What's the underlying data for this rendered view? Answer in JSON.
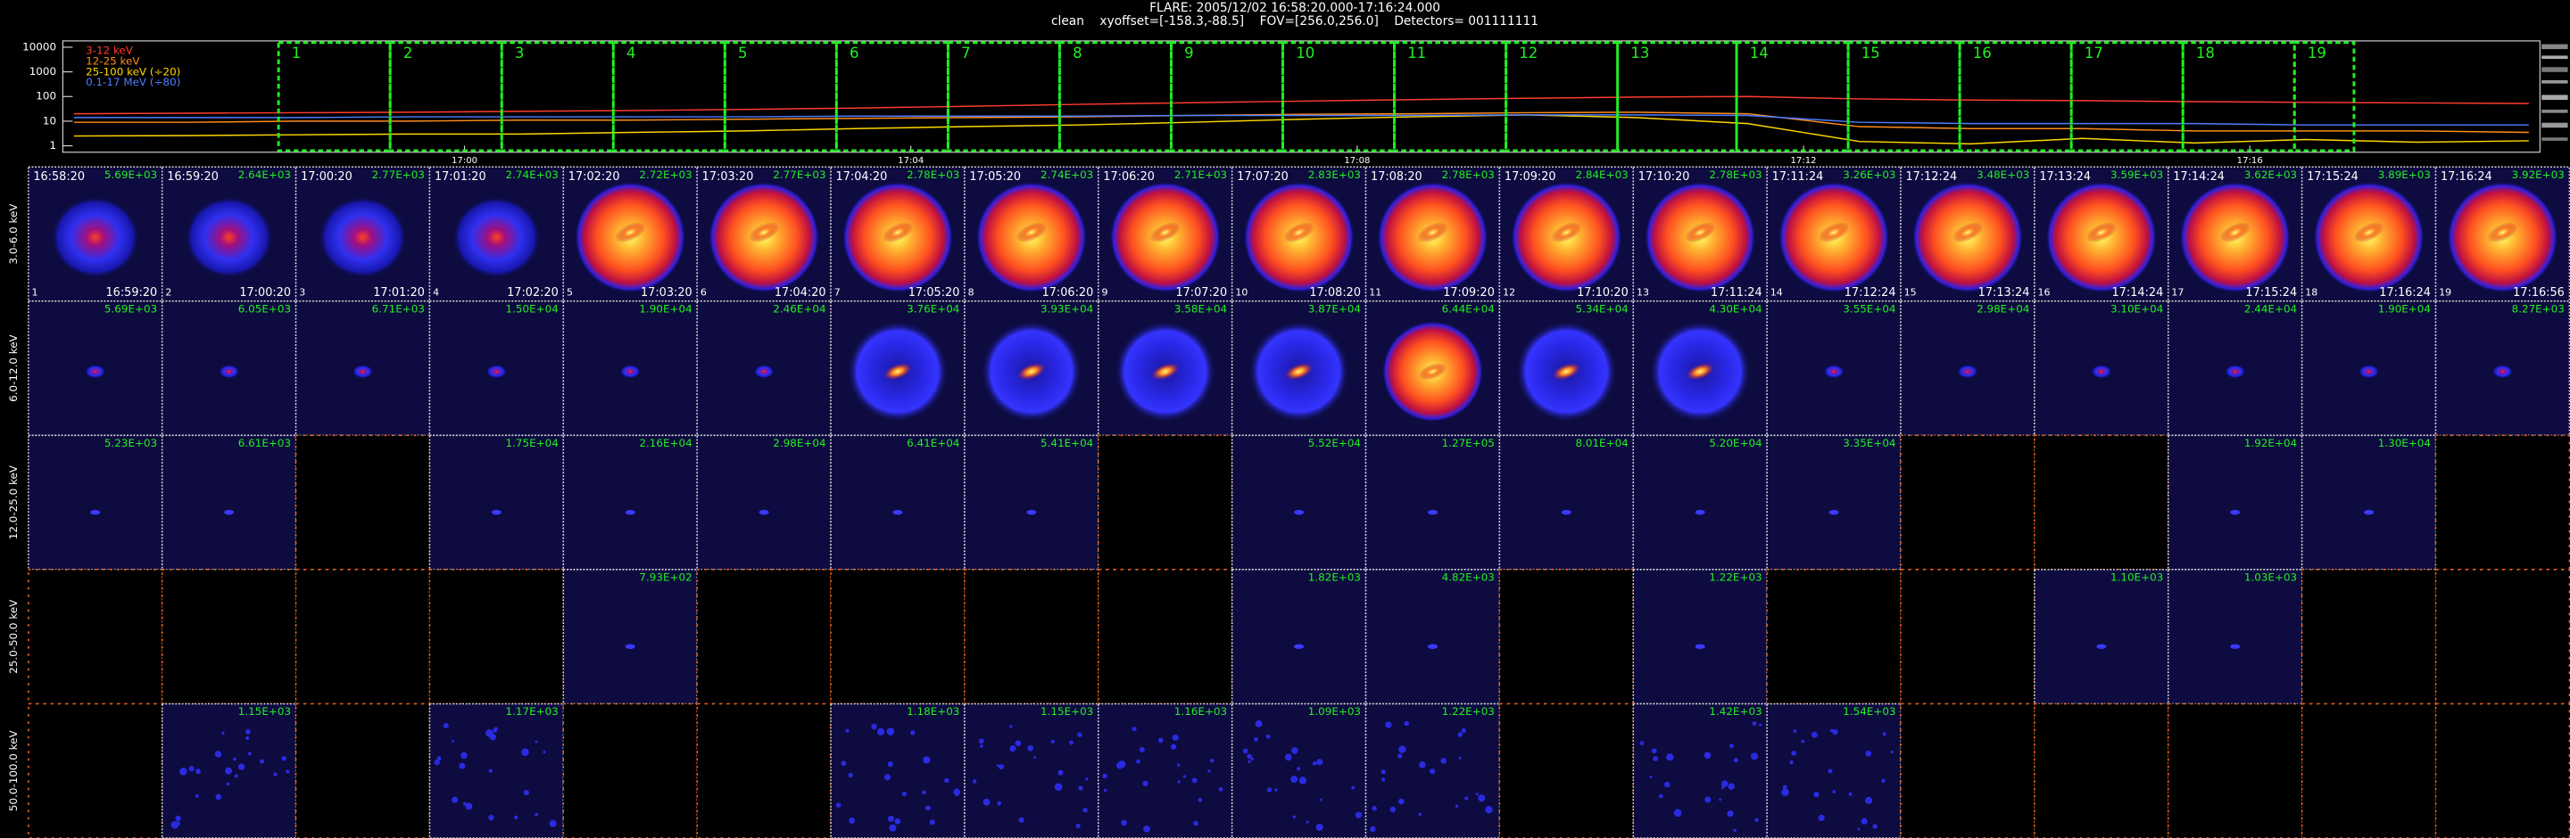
{
  "header": {
    "title": "FLARE: 2005/12/02 16:58:20.000-17:16:24.000",
    "subtitle": "clean    xyoffset=[-158.3,-88.5]    FOV=[256.0,256.0]    Detectors= 001111111"
  },
  "chart_data": {
    "type": "line",
    "log_y": true,
    "legend": "top-left",
    "x": [
      1016.5,
      1017.5,
      1018.5,
      1019.5,
      1020.5,
      1021.5,
      1022.5,
      1023.5,
      1024.5,
      1025.5,
      1026.5,
      1027.5,
      1028.5,
      1029.5,
      1030.5,
      1031.5,
      1032.5,
      1033.5,
      1034.5,
      1035.5,
      1036.5,
      1037.5,
      1038.5
    ],
    "xlim": [
      1016.4,
      1038.6
    ],
    "xticks": [
      {
        "value": 1020,
        "label": "17:00"
      },
      {
        "value": 1024,
        "label": "17:04"
      },
      {
        "value": 1028,
        "label": "17:08"
      },
      {
        "value": 1032,
        "label": "17:12"
      },
      {
        "value": 1036,
        "label": "17:16"
      }
    ],
    "ylim": [
      0.55,
      18000
    ],
    "yticks": [
      1,
      10,
      100,
      1000,
      10000
    ],
    "series": [
      {
        "name": "3-12 keV",
        "color": "#ff3b2f",
        "values": [
          20,
          21,
          22,
          23,
          25,
          27,
          30,
          34,
          40,
          48,
          56,
          65,
          75,
          85,
          95,
          100,
          80,
          72,
          68,
          62,
          58,
          55,
          52
        ]
      },
      {
        "name": "12-25 keV",
        "color": "#ff8c1a",
        "values": [
          9,
          9,
          10,
          10,
          11,
          11,
          12,
          13,
          14,
          15,
          17,
          19,
          20,
          22,
          23,
          20,
          6,
          5,
          5,
          4,
          4,
          4,
          3.5
        ]
      },
      {
        "name": "25-100 keV (÷20)",
        "color": "#ffd700",
        "values": [
          2.5,
          2.6,
          2.8,
          3,
          3,
          3.5,
          4,
          5,
          6,
          7,
          9,
          12,
          15,
          18,
          14,
          8,
          1.5,
          1.2,
          2,
          1.3,
          1.8,
          1.4,
          1.6
        ]
      },
      {
        "name": "0.1-17 MeV (÷80)",
        "color": "#4f7dff",
        "values": [
          14,
          14,
          14,
          15,
          15,
          15,
          15,
          16,
          16,
          16,
          17,
          17,
          17,
          18,
          18,
          17,
          9,
          8,
          8,
          8,
          7,
          7,
          7
        ]
      }
    ]
  },
  "intervals": [
    "1",
    "2",
    "3",
    "4",
    "5",
    "6",
    "7",
    "8",
    "9",
    "10",
    "11",
    "12",
    "13",
    "14",
    "15",
    "16",
    "17",
    "18",
    "19"
  ],
  "image_grid": {
    "rows": [
      "3.0-6.0 keV",
      "6.0-12.0 keV",
      "12.0-25.0 keV",
      "25.0-50.0 keV",
      "50.0-100.0 keV"
    ],
    "columns": [
      {
        "index": "1",
        "start": "16:58:20",
        "end": "16:59:20"
      },
      {
        "index": "2",
        "start": "16:59:20",
        "end": "17:00:20"
      },
      {
        "index": "3",
        "start": "17:00:20",
        "end": "17:01:20"
      },
      {
        "index": "4",
        "start": "17:01:20",
        "end": "17:02:20"
      },
      {
        "index": "5",
        "start": "17:02:20",
        "end": "17:03:20"
      },
      {
        "index": "6",
        "start": "17:03:20",
        "end": "17:04:20"
      },
      {
        "index": "7",
        "start": "17:04:20",
        "end": "17:05:20"
      },
      {
        "index": "8",
        "start": "17:05:20",
        "end": "17:06:20"
      },
      {
        "index": "9",
        "start": "17:06:20",
        "end": "17:07:20"
      },
      {
        "index": "10",
        "start": "17:07:20",
        "end": "17:08:20"
      },
      {
        "index": "11",
        "start": "17:08:20",
        "end": "17:09:20"
      },
      {
        "index": "12",
        "start": "17:09:20",
        "end": "17:10:20"
      },
      {
        "index": "13",
        "start": "17:10:20",
        "end": "17:11:24"
      },
      {
        "index": "14",
        "start": "17:11:24",
        "end": "17:12:24"
      },
      {
        "index": "15",
        "start": "17:12:24",
        "end": "17:13:24"
      },
      {
        "index": "16",
        "start": "17:13:24",
        "end": "17:14:24"
      },
      {
        "index": "17",
        "start": "17:14:24",
        "end": "17:15:24"
      },
      {
        "index": "18",
        "start": "17:15:24",
        "end": "17:16:24"
      },
      {
        "index": "19",
        "start": "17:16:24",
        "end": "17:16:56"
      }
    ],
    "max_values": [
      [
        "5.69E+03",
        "2.64E+03",
        "2.77E+03",
        "2.74E+03",
        "2.72E+03",
        "2.77E+03",
        "2.78E+03",
        "2.74E+03",
        "2.71E+03",
        "2.83E+03",
        "2.78E+03",
        "2.84E+03",
        "2.78E+03",
        "3.26E+03",
        "3.48E+03",
        "3.59E+03",
        "3.62E+03",
        "3.89E+03",
        "3.92E+03"
      ],
      [
        "5.69E+03",
        "6.05E+03",
        "6.71E+03",
        "1.50E+04",
        "1.90E+04",
        "2.46E+04",
        "3.76E+04",
        "3.93E+04",
        "3.58E+04",
        "3.87E+04",
        "6.44E+04",
        "5.34E+04",
        "4.30E+04",
        "3.55E+04",
        "2.98E+04",
        "3.10E+04",
        "2.44E+04",
        "1.90E+04",
        "8.27E+03"
      ],
      [
        "5.23E+03",
        "6.61E+03",
        null,
        "1.75E+04",
        "2.16E+04",
        "2.98E+04",
        "6.41E+04",
        "5.41E+04",
        null,
        "5.52E+04",
        "1.27E+05",
        "8.01E+04",
        "5.20E+04",
        "3.35E+04",
        null,
        null,
        "1.92E+04",
        "1.30E+04",
        null
      ],
      [
        null,
        null,
        null,
        null,
        "7.93E+02",
        null,
        null,
        null,
        null,
        "1.82E+03",
        "4.82E+03",
        null,
        "1.22E+03",
        null,
        null,
        "1.10E+03",
        "1.03E+03",
        null,
        null
      ],
      [
        null,
        "1.15E+03",
        null,
        "1.17E+03",
        null,
        null,
        "1.18E+03",
        "1.15E+03",
        "1.16E+03",
        "1.09E+03",
        "1.22E+03",
        null,
        "1.42E+03",
        "1.54E+03",
        null,
        null,
        null,
        null,
        null
      ]
    ]
  }
}
